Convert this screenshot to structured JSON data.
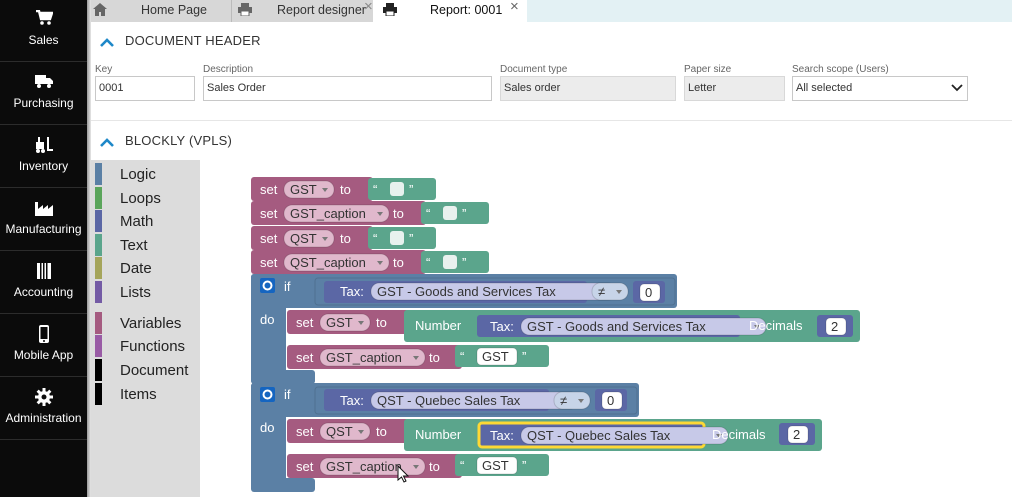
{
  "sidebar": {
    "items": [
      {
        "label": "Sales",
        "icon": "cart-icon"
      },
      {
        "label": "Purchasing",
        "icon": "truck-icon"
      },
      {
        "label": "Inventory",
        "icon": "forklift-icon"
      },
      {
        "label": "Manufacturing",
        "icon": "factory-icon"
      },
      {
        "label": "Accounting",
        "icon": "ledger-icon"
      },
      {
        "label": "Mobile App",
        "icon": "mobile-icon"
      },
      {
        "label": "Administration",
        "icon": "gear-icon"
      }
    ]
  },
  "tabs": [
    {
      "label": "Home Page",
      "icon": "home-icon"
    },
    {
      "label": "Report designer",
      "icon": "printer-icon"
    },
    {
      "label": "Report: 0001",
      "icon": "printer-icon",
      "active": true
    }
  ],
  "document_header": {
    "title": "DOCUMENT HEADER",
    "key": {
      "label": "Key",
      "value": "0001"
    },
    "description": {
      "label": "Description",
      "value": "Sales Order"
    },
    "document_type": {
      "label": "Document type",
      "value": "Sales order"
    },
    "paper_size": {
      "label": "Paper size",
      "value": "Letter"
    },
    "search_scope": {
      "label": "Search scope (Users)",
      "value": "All selected"
    }
  },
  "blockly": {
    "title": "BLOCKLY (VPLS)",
    "categories": [
      {
        "label": "Logic",
        "color": "#5b80a5"
      },
      {
        "label": "Loops",
        "color": "#5ba55b"
      },
      {
        "label": "Math",
        "color": "#5b67a5"
      },
      {
        "label": "Text",
        "color": "#5ba58c"
      },
      {
        "label": "Date",
        "color": "#a5a55b"
      },
      {
        "label": "Lists",
        "color": "#745ba5"
      },
      {
        "label": "Variables",
        "color": "#a55b80"
      },
      {
        "label": "Functions",
        "color": "#995ba5"
      },
      {
        "label": "Document",
        "color": "#000000"
      },
      {
        "label": "Items",
        "color": "#000000"
      }
    ],
    "colors": {
      "variables": "#a55b80",
      "text": "#5ba58c",
      "logic": "#5b80a5",
      "math": "#5b67a5",
      "highlight": "#fdd835"
    },
    "keywords": {
      "set": "set",
      "to": "to",
      "if": "if",
      "do": "do",
      "tax": "Tax:",
      "number": "Number",
      "decimals": "Decimals",
      "neq": "≠",
      "open_quote": "“",
      "close_quote": "”"
    },
    "vars": {
      "gst": "GST",
      "gst_caption": "GST_caption",
      "qst": "QST",
      "qst_caption": "QST_caption"
    },
    "taxes": {
      "gst": "GST - Goods and Services Tax",
      "qst": "QST - Quebec Sales Tax"
    },
    "values": {
      "zero": "0",
      "two": "2",
      "gst_text": "GST"
    }
  }
}
